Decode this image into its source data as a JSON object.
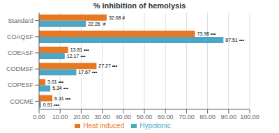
{
  "chart_data": {
    "type": "bar",
    "orientation": "horizontal",
    "title": "% inhibition of hemolysis",
    "categories": [
      "Standard",
      "COAQSF",
      "COEASF",
      "CODMSF",
      "COPESF",
      "COCME"
    ],
    "series": [
      {
        "name": "Heat induced",
        "color": "#E87722",
        "values": [
          32.08,
          73.98,
          13.81,
          27.27,
          3.01,
          6.31
        ],
        "value_labels": [
          "32.08 #",
          "73.98 •••",
          "13.81 •••",
          "27.27 •••",
          "3.01 •••",
          "6.31 •••"
        ]
      },
      {
        "name": "Hypotonic",
        "color": "#4BA6C8",
        "values": [
          22.26,
          87.51,
          12.17,
          17.67,
          5.34,
          0.91
        ],
        "value_labels": [
          "22.26  #",
          "87.51 •••",
          "12.17 •••",
          "17.67 •••",
          "5.34 •••",
          "0.91 •••"
        ]
      }
    ],
    "xlim": [
      0,
      100
    ],
    "xticks": [
      {
        "value": 0,
        "label": "0.00"
      },
      {
        "value": 10,
        "label": "10.00"
      },
      {
        "value": 20,
        "label": "20.00"
      },
      {
        "value": 30,
        "label": "30.00"
      },
      {
        "value": 40,
        "label": "40.00"
      },
      {
        "value": 50,
        "label": "50.00"
      },
      {
        "value": 60,
        "label": "60.00"
      },
      {
        "value": 70,
        "label": "70.00"
      },
      {
        "value": 80,
        "label": "80.00"
      },
      {
        "value": 90,
        "label": "90.00"
      },
      {
        "value": 100,
        "label": "100.00"
      }
    ],
    "grid": true,
    "legend": "bottom",
    "data_labels": true
  }
}
